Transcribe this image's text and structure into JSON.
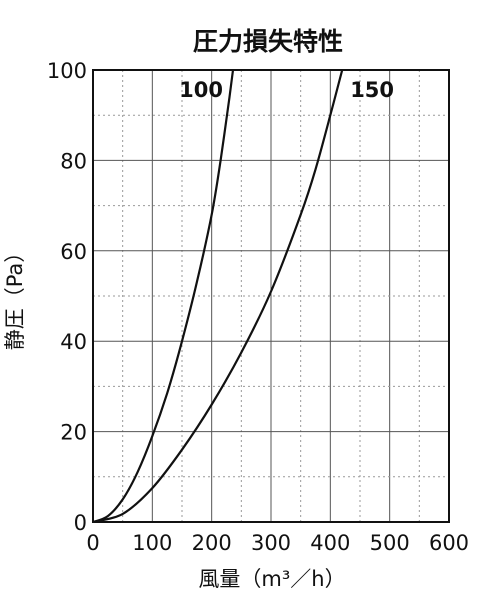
{
  "chart_data": {
    "type": "line",
    "title": "圧力損失特性",
    "xlabel": "風量（m³／h）",
    "ylabel": "静圧（Pa）",
    "xlim": [
      0,
      600
    ],
    "ylim": [
      0,
      100
    ],
    "x_ticks": [
      "0",
      "100",
      "200",
      "300",
      "400",
      "500",
      "600"
    ],
    "y_ticks": [
      "0",
      "20",
      "40",
      "60",
      "80",
      "100"
    ],
    "grid": true,
    "series": [
      {
        "name": "100",
        "points": [
          [
            0,
            0
          ],
          [
            25,
            1.3
          ],
          [
            50,
            5
          ],
          [
            75,
            11
          ],
          [
            100,
            19
          ],
          [
            125,
            28.5
          ],
          [
            150,
            40
          ],
          [
            175,
            53
          ],
          [
            200,
            68
          ],
          [
            215,
            80
          ],
          [
            230,
            94
          ],
          [
            236,
            100
          ]
        ]
      },
      {
        "name": "150",
        "points": [
          [
            0,
            0
          ],
          [
            50,
            1.8
          ],
          [
            100,
            7.5
          ],
          [
            150,
            16
          ],
          [
            200,
            26
          ],
          [
            250,
            37.5
          ],
          [
            300,
            51
          ],
          [
            350,
            68
          ],
          [
            375,
            78
          ],
          [
            400,
            90
          ],
          [
            420,
            100
          ]
        ]
      }
    ]
  }
}
